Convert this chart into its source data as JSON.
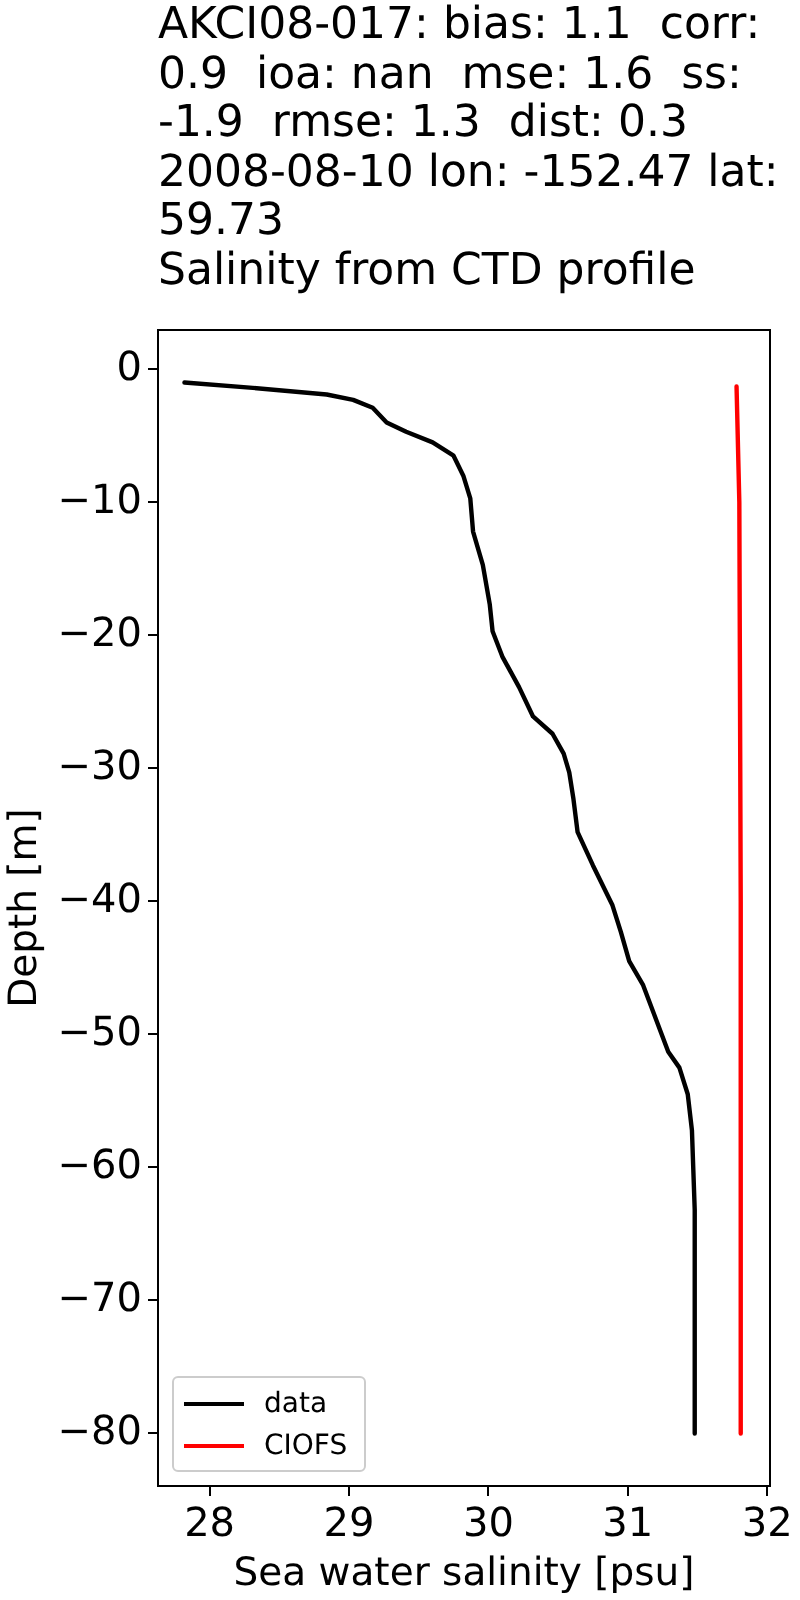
{
  "chart_data": {
    "type": "line",
    "title": "AKCI08-017: bias: 1.1  corr: 0.9  ioa: nan  mse: 1.6  ss: -1.9  rmse: 1.3  dist: 0.3\n2008-08-10 lon: -152.47 lat: 59.73\nSalinity from CTD profile",
    "xlabel": "Sea water salinity [psu]",
    "ylabel": "Depth [m]",
    "series": [
      {
        "name": "data",
        "color": "#000000",
        "x": [
          27.82,
          28.31,
          28.84,
          29.03,
          29.17,
          29.27,
          29.41,
          29.6,
          29.75,
          29.82,
          29.87,
          29.89,
          29.96,
          30.01,
          30.03,
          30.1,
          30.22,
          30.32,
          30.46,
          30.54,
          30.58,
          30.61,
          30.64,
          30.75,
          30.89,
          30.95,
          31.01,
          31.11,
          31.2,
          31.29,
          31.37,
          31.43,
          31.46,
          31.47,
          31.48,
          31.48
        ],
        "values": [
          -1.0,
          -1.4,
          -1.9,
          -2.3,
          -2.9,
          -4.0,
          -4.7,
          -5.5,
          -6.5,
          -8.0,
          -9.7,
          -12.2,
          -14.7,
          -17.7,
          -19.7,
          -21.6,
          -23.9,
          -26.1,
          -27.4,
          -28.9,
          -30.3,
          -32.3,
          -34.8,
          -37.3,
          -40.3,
          -42.3,
          -44.5,
          -46.3,
          -48.8,
          -51.3,
          -52.5,
          -54.5,
          -57.2,
          -60.2,
          -63.2,
          -80.0
        ]
      },
      {
        "name": "CIOFS",
        "color": "#ff0000",
        "x": [
          31.78,
          31.8,
          31.81,
          31.81
        ],
        "values": [
          -1.3,
          -10.0,
          -40.0,
          -80.0
        ]
      }
    ],
    "xlim": [
      27.63,
      32.02
    ],
    "ylim": [
      -83.95,
      2.95
    ],
    "xticks": [
      28,
      29,
      30,
      31,
      32
    ],
    "yticks": [
      {
        "value": -80,
        "label": "−80"
      },
      {
        "value": -70,
        "label": "−70"
      },
      {
        "value": -60,
        "label": "−60"
      },
      {
        "value": -50,
        "label": "−50"
      },
      {
        "value": -40,
        "label": "−40"
      },
      {
        "value": -30,
        "label": "−30"
      },
      {
        "value": -20,
        "label": "−20"
      },
      {
        "value": -10,
        "label": "−10"
      },
      0
    ],
    "legend": "bottom left"
  }
}
